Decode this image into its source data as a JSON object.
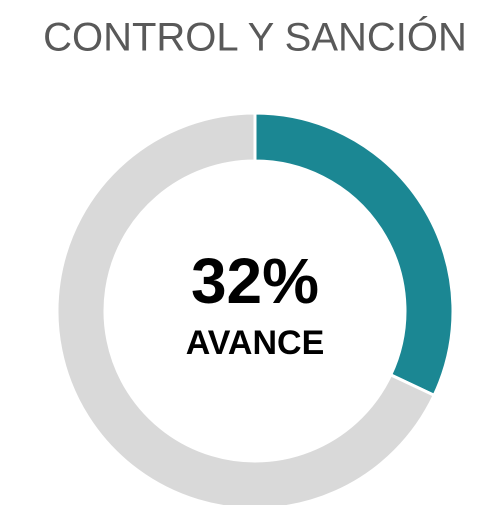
{
  "chart_data": {
    "type": "pie",
    "title": "CONTROL Y SANCIÓN",
    "values": [
      32,
      68
    ],
    "value_labels": [
      "32%",
      null
    ],
    "center_text": "AVANCE",
    "colors": [
      "#1b8793",
      "#d9d9d9"
    ],
    "donut": true
  }
}
